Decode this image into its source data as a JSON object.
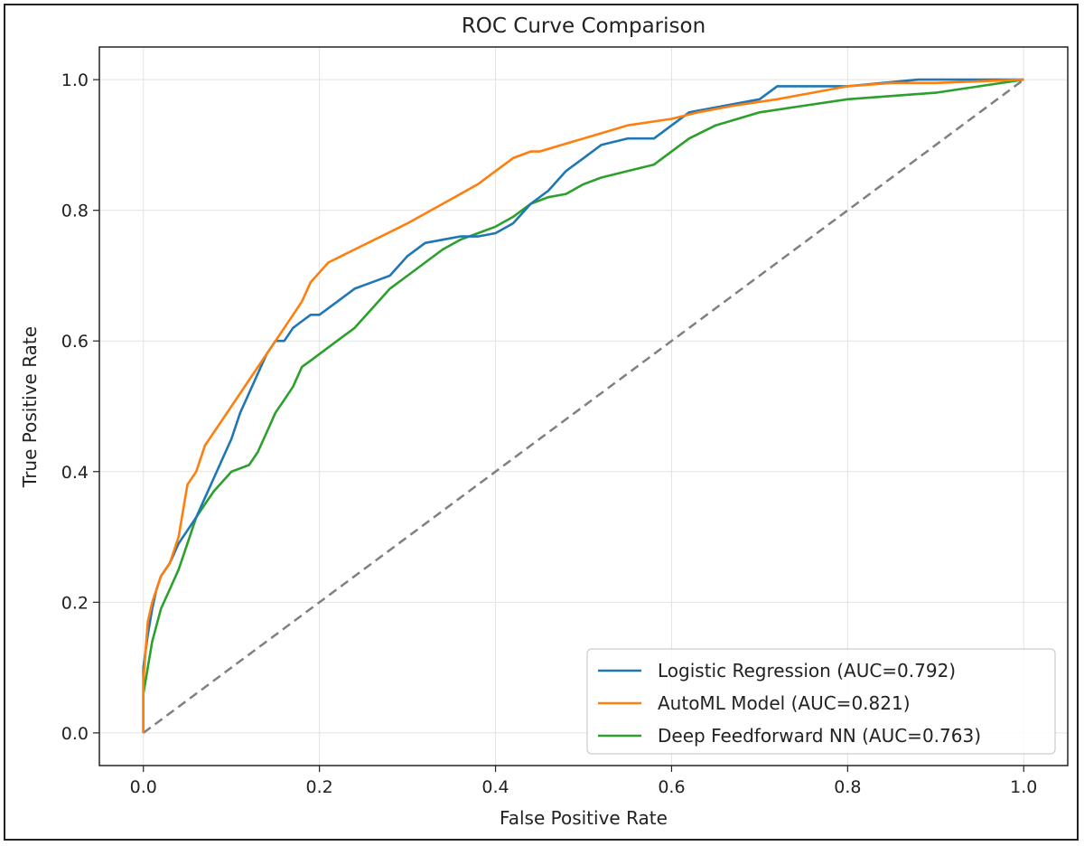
{
  "chart_data": {
    "type": "line",
    "title": "ROC Curve Comparison",
    "xlabel": "False Positive Rate",
    "ylabel": "True Positive Rate",
    "xlim": [
      -0.05,
      1.05
    ],
    "ylim": [
      -0.05,
      1.05
    ],
    "xticks": [
      "0.0",
      "0.2",
      "0.4",
      "0.6",
      "0.8",
      "1.0"
    ],
    "yticks": [
      "0.0",
      "0.2",
      "0.4",
      "0.6",
      "0.8",
      "1.0"
    ],
    "grid": true,
    "legend_position": "lower-right",
    "series": [
      {
        "name": "Logistic Regression (AUC=0.792)",
        "color": "#1f77b4",
        "x": [
          0.0,
          0.0,
          0.005,
          0.01,
          0.015,
          0.02,
          0.03,
          0.04,
          0.05,
          0.06,
          0.07,
          0.08,
          0.09,
          0.1,
          0.11,
          0.12,
          0.13,
          0.14,
          0.15,
          0.16,
          0.17,
          0.18,
          0.19,
          0.2,
          0.21,
          0.22,
          0.24,
          0.26,
          0.28,
          0.3,
          0.32,
          0.34,
          0.36,
          0.38,
          0.4,
          0.42,
          0.44,
          0.46,
          0.48,
          0.5,
          0.52,
          0.55,
          0.58,
          0.6,
          0.62,
          0.66,
          0.7,
          0.72,
          0.8,
          0.88,
          1.0
        ],
        "y": [
          0.0,
          0.1,
          0.15,
          0.19,
          0.22,
          0.24,
          0.26,
          0.29,
          0.31,
          0.33,
          0.36,
          0.39,
          0.42,
          0.45,
          0.49,
          0.52,
          0.55,
          0.58,
          0.6,
          0.6,
          0.62,
          0.63,
          0.64,
          0.64,
          0.65,
          0.66,
          0.68,
          0.69,
          0.7,
          0.73,
          0.75,
          0.755,
          0.76,
          0.76,
          0.765,
          0.78,
          0.81,
          0.83,
          0.86,
          0.88,
          0.9,
          0.91,
          0.91,
          0.93,
          0.95,
          0.96,
          0.97,
          0.99,
          0.99,
          1.0,
          1.0
        ]
      },
      {
        "name": "AutoML Model (AUC=0.821)",
        "color": "#ff7f0e",
        "x": [
          0.0,
          0.0,
          0.005,
          0.01,
          0.02,
          0.03,
          0.04,
          0.05,
          0.06,
          0.07,
          0.1,
          0.13,
          0.16,
          0.18,
          0.19,
          0.21,
          0.24,
          0.27,
          0.3,
          0.34,
          0.38,
          0.4,
          0.42,
          0.44,
          0.45,
          0.5,
          0.55,
          0.6,
          0.63,
          0.67,
          0.72,
          0.76,
          0.8,
          0.85,
          0.9,
          1.0
        ],
        "y": [
          0.0,
          0.08,
          0.17,
          0.2,
          0.24,
          0.26,
          0.3,
          0.38,
          0.4,
          0.44,
          0.5,
          0.56,
          0.62,
          0.66,
          0.69,
          0.72,
          0.74,
          0.76,
          0.78,
          0.81,
          0.84,
          0.86,
          0.88,
          0.89,
          0.89,
          0.91,
          0.93,
          0.94,
          0.95,
          0.96,
          0.97,
          0.98,
          0.99,
          0.995,
          0.995,
          1.0
        ]
      },
      {
        "name": "Deep Feedforward NN (AUC=0.763)",
        "color": "#2ca02c",
        "x": [
          0.0,
          0.0,
          0.005,
          0.01,
          0.02,
          0.03,
          0.04,
          0.05,
          0.06,
          0.07,
          0.08,
          0.1,
          0.12,
          0.13,
          0.14,
          0.15,
          0.16,
          0.17,
          0.18,
          0.19,
          0.2,
          0.22,
          0.24,
          0.26,
          0.28,
          0.3,
          0.32,
          0.34,
          0.36,
          0.38,
          0.4,
          0.42,
          0.44,
          0.46,
          0.48,
          0.5,
          0.52,
          0.55,
          0.58,
          0.6,
          0.62,
          0.65,
          0.7,
          0.75,
          0.8,
          0.85,
          0.9,
          0.95,
          1.0
        ],
        "y": [
          0.0,
          0.06,
          0.1,
          0.14,
          0.19,
          0.22,
          0.25,
          0.29,
          0.33,
          0.35,
          0.37,
          0.4,
          0.41,
          0.43,
          0.46,
          0.49,
          0.51,
          0.53,
          0.56,
          0.57,
          0.58,
          0.6,
          0.62,
          0.65,
          0.68,
          0.7,
          0.72,
          0.74,
          0.755,
          0.765,
          0.775,
          0.79,
          0.81,
          0.82,
          0.825,
          0.84,
          0.85,
          0.86,
          0.87,
          0.89,
          0.91,
          0.93,
          0.95,
          0.96,
          0.97,
          0.975,
          0.98,
          0.99,
          1.0
        ]
      }
    ],
    "reference_line": {
      "name": "chance",
      "color": "#808080",
      "x": [
        0.0,
        1.0
      ],
      "y": [
        0.0,
        1.0
      ]
    }
  }
}
